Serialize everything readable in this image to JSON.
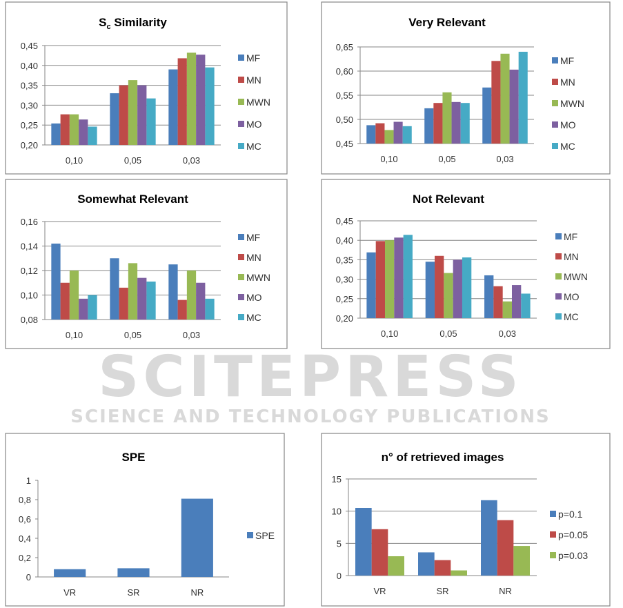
{
  "watermark": {
    "main": "SCITEPRESS",
    "sub": "SCIENCE AND TECHNOLOGY PUBLICATIONS"
  },
  "colors": {
    "MF": "#4a7ebb",
    "MN": "#be4b48",
    "MWN": "#98b954",
    "MO": "#7d60a0",
    "MC": "#46aac5"
  },
  "chart_data": [
    {
      "type": "bar",
      "title": "Sc Similarity",
      "title_main": "S",
      "title_sub": "c",
      "title_rest": " Similarity",
      "categories": [
        "0,10",
        "0,05",
        "0,03"
      ],
      "ylim": [
        0.2,
        0.45
      ],
      "yticks": [
        "0,20",
        "0,25",
        "0,30",
        "0,35",
        "0,40",
        "0,45"
      ],
      "ytick_values": [
        0.2,
        0.25,
        0.3,
        0.35,
        0.4,
        0.45
      ],
      "legend": "right",
      "grid": true,
      "series": [
        {
          "name": "MF",
          "color": "#4a7ebb",
          "values": [
            0.254,
            0.33,
            0.39
          ]
        },
        {
          "name": "MN",
          "color": "#be4b48",
          "values": [
            0.277,
            0.35,
            0.418
          ]
        },
        {
          "name": "MWN",
          "color": "#98b954",
          "values": [
            0.277,
            0.363,
            0.432
          ]
        },
        {
          "name": "MO",
          "color": "#7d60a0",
          "values": [
            0.264,
            0.35,
            0.427
          ]
        },
        {
          "name": "MC",
          "color": "#46aac5",
          "values": [
            0.246,
            0.317,
            0.395
          ]
        }
      ]
    },
    {
      "type": "bar",
      "title": "Very Relevant",
      "categories": [
        "0,10",
        "0,05",
        "0,03"
      ],
      "ylim": [
        0.45,
        0.65
      ],
      "yticks": [
        "0,45",
        "0,50",
        "0,55",
        "0,60",
        "0,65"
      ],
      "ytick_values": [
        0.45,
        0.5,
        0.55,
        0.6,
        0.65
      ],
      "legend": "right",
      "grid": true,
      "series": [
        {
          "name": "MF",
          "color": "#4a7ebb",
          "values": [
            0.488,
            0.523,
            0.566
          ]
        },
        {
          "name": "MN",
          "color": "#be4b48",
          "values": [
            0.492,
            0.534,
            0.621
          ]
        },
        {
          "name": "MWN",
          "color": "#98b954",
          "values": [
            0.478,
            0.556,
            0.636
          ]
        },
        {
          "name": "MO",
          "color": "#7d60a0",
          "values": [
            0.495,
            0.536,
            0.603
          ]
        },
        {
          "name": "MC",
          "color": "#46aac5",
          "values": [
            0.486,
            0.534,
            0.64
          ]
        }
      ]
    },
    {
      "type": "bar",
      "title": "Somewhat Relevant",
      "categories": [
        "0,10",
        "0,05",
        "0,03"
      ],
      "ylim": [
        0.08,
        0.16
      ],
      "yticks": [
        "0,08",
        "0,10",
        "0,12",
        "0,14",
        "0,16"
      ],
      "ytick_values": [
        0.08,
        0.1,
        0.12,
        0.14,
        0.16
      ],
      "legend": "right",
      "grid": true,
      "series": [
        {
          "name": "MF",
          "color": "#4a7ebb",
          "values": [
            0.142,
            0.13,
            0.125
          ]
        },
        {
          "name": "MN",
          "color": "#be4b48",
          "values": [
            0.11,
            0.106,
            0.096
          ]
        },
        {
          "name": "MWN",
          "color": "#98b954",
          "values": [
            0.12,
            0.126,
            0.12
          ]
        },
        {
          "name": "MO",
          "color": "#7d60a0",
          "values": [
            0.097,
            0.114,
            0.11
          ]
        },
        {
          "name": "MC",
          "color": "#46aac5",
          "values": [
            0.1,
            0.111,
            0.097
          ]
        }
      ]
    },
    {
      "type": "bar",
      "title": "Not Relevant",
      "categories": [
        "0,10",
        "0,05",
        "0,03"
      ],
      "ylim": [
        0.2,
        0.45
      ],
      "yticks": [
        "0,20",
        "0,25",
        "0,30",
        "0,35",
        "0,40",
        "0,45"
      ],
      "ytick_values": [
        0.2,
        0.25,
        0.3,
        0.35,
        0.4,
        0.45
      ],
      "legend": "right",
      "grid": true,
      "series": [
        {
          "name": "MF",
          "color": "#4a7ebb",
          "values": [
            0.369,
            0.345,
            0.31
          ]
        },
        {
          "name": "MN",
          "color": "#be4b48",
          "values": [
            0.398,
            0.36,
            0.282
          ]
        },
        {
          "name": "MWN",
          "color": "#98b954",
          "values": [
            0.4,
            0.316,
            0.243
          ]
        },
        {
          "name": "MO",
          "color": "#7d60a0",
          "values": [
            0.407,
            0.35,
            0.285
          ]
        },
        {
          "name": "MC",
          "color": "#46aac5",
          "values": [
            0.414,
            0.356,
            0.263
          ]
        }
      ]
    },
    {
      "type": "bar",
      "title": "SPE",
      "categories": [
        "VR",
        "SR",
        "NR"
      ],
      "ylim": [
        0,
        1
      ],
      "yticks": [
        "0",
        "0,2",
        "0,4",
        "0,6",
        "0,8",
        "1"
      ],
      "ytick_values": [
        0,
        0.2,
        0.4,
        0.6,
        0.8,
        1
      ],
      "legend": "right",
      "grid": false,
      "series": [
        {
          "name": "SPE",
          "color": "#4a7ebb",
          "values": [
            0.08,
            0.09,
            0.81
          ]
        }
      ]
    },
    {
      "type": "bar",
      "title": "n° of retrieved images",
      "categories": [
        "VR",
        "SR",
        "NR"
      ],
      "ylim": [
        0,
        15
      ],
      "yticks": [
        "0",
        "5",
        "10",
        "15"
      ],
      "ytick_values": [
        0,
        5,
        10,
        15
      ],
      "legend": "right",
      "grid": true,
      "series": [
        {
          "name": "p=0.1",
          "color": "#4a7ebb",
          "values": [
            10.5,
            3.6,
            11.7
          ]
        },
        {
          "name": "p=0.05",
          "color": "#be4b48",
          "values": [
            7.2,
            2.4,
            8.6
          ]
        },
        {
          "name": "p=0.03",
          "color": "#98b954",
          "values": [
            3.0,
            0.8,
            4.6
          ]
        }
      ]
    }
  ]
}
